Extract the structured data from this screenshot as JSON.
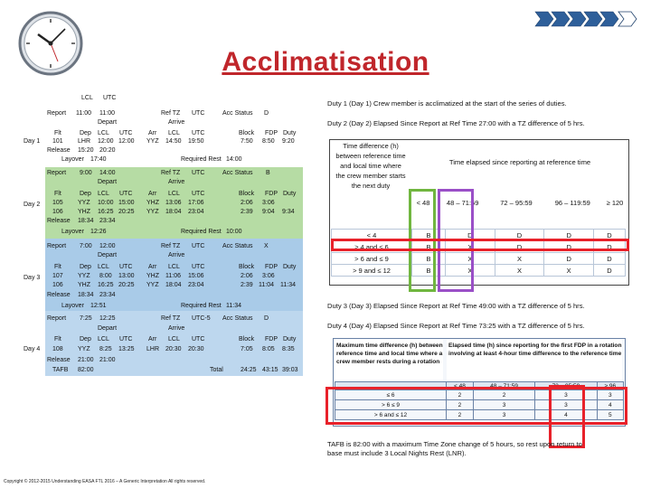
{
  "title": "Acclimatisation",
  "schedule": {
    "header_local": "LCL",
    "header_utc": "UTC",
    "report_label": "Report",
    "depart_label": "Depart",
    "arrive_label": "Arrive",
    "flt_label": "Flt",
    "dep_label": "Dep",
    "lcl_label": "LCL",
    "utc_label": "UTC",
    "arr_label": "Arr",
    "block_label": "Block",
    "fdp_label": "FDP",
    "duty_label": "Duty",
    "release_label": "Release",
    "layover_label": "Layover",
    "required_rest_label": "Required Rest",
    "ref_tz_label": "Ref TZ",
    "acc_status_label": "Acc Status",
    "day1": {
      "label": "Day 1",
      "report_lcl": "11:00",
      "report_utc": "11:00",
      "ref_tz": "UTC",
      "acc_status": "D",
      "flt": "101",
      "dep": "LHR",
      "dep_lcl": "12:00",
      "dep_utc": "12:00",
      "arr": "YYZ",
      "arr_lcl": "14:50",
      "arr_utc": "19:50",
      "block": "7:50",
      "fdp": "8:50",
      "duty": "9:20",
      "release_lcl": "15:20",
      "release_utc": "20:20",
      "layover": "17:40",
      "required_rest": "14:00"
    },
    "day2": {
      "label": "Day 2",
      "report_lcl": "9:00",
      "report_utc": "14:00",
      "ref_tz": "UTC",
      "acc_status": "B",
      "flt1": "105",
      "dep1": "YYZ",
      "dep1_lcl": "10:00",
      "dep1_utc": "15:00",
      "arr1": "YHZ",
      "arr1_lcl": "13:06",
      "arr1_utc": "17:06",
      "block1": "2:06",
      "fdp1": "3:06",
      "flt2": "106",
      "dep2": "YHZ",
      "dep2_lcl": "16:25",
      "dep2_utc": "20:25",
      "arr2": "YYZ",
      "arr2_lcl": "18:04",
      "arr2_utc": "23:04",
      "block2": "2:39",
      "fdp2": "9:04",
      "duty": "9:34",
      "release_lcl": "18:34",
      "release_utc": "23:34",
      "layover": "12:26",
      "required_rest": "10:00"
    },
    "day3": {
      "label": "Day 3",
      "report_lcl": "7:00",
      "report_utc": "12:00",
      "ref_tz": "UTC",
      "acc_status": "X",
      "flt1": "107",
      "dep1": "YYZ",
      "dep1_lcl": "8:00",
      "dep1_utc": "13:00",
      "arr1": "YHZ",
      "arr1_lcl": "11:06",
      "arr1_utc": "15:06",
      "block1": "2:06",
      "fdp1": "3:06",
      "flt2": "106",
      "dep2": "YHZ",
      "dep2_lcl": "16:25",
      "dep2_utc": "20:25",
      "arr2": "YYZ",
      "arr2_lcl": "18:04",
      "arr2_utc": "23:04",
      "block2": "2:39",
      "fdp2": "11:04",
      "duty": "11:34",
      "release_lcl": "18:34",
      "release_utc": "23:34",
      "layover": "12:51",
      "required_rest": "11:34"
    },
    "day4": {
      "label": "Day 4",
      "report_lcl": "7:25",
      "report_utc": "12:25",
      "ref_tz": "UTC-5",
      "acc_status": "D",
      "flt": "108",
      "dep": "YYZ",
      "dep_lcl": "8:25",
      "dep_utc": "13:25",
      "arr": "LHR",
      "arr_lcl": "20:30",
      "arr_utc": "20:30",
      "block": "7:05",
      "fdp": "8:05",
      "duty": "8:35",
      "release_lcl": "21:00",
      "release_utc": "21:00"
    },
    "tafb_label": "TAFB",
    "tafb": "82:00",
    "total_label": "Total",
    "total_block": "24:25",
    "total_fdp": "43:15",
    "total_duty": "39:03"
  },
  "notes": {
    "duty1": "Duty 1 (Day 1) Crew member is acclimatized at the start of the series of duties.",
    "duty2": "Duty 2 (Day 2) Elapsed Since Report at Ref Time 27:00 with a TZ difference of 5 hrs.",
    "duty3": "Duty 3 (Day 3) Elapsed Since Report at Ref Time 49:00 with a TZ difference of 5 hrs.",
    "duty4": "Duty 4 (Day 4) Elapsed Since Report at Ref Time 73:25 with a TZ difference of 5 hrs.",
    "tafb": "TAFB is 82:00 with a maximum Time Zone change of 5 hours, so rest upon return to base must include 3 Local Nights Rest (LNR)."
  },
  "acc_table": {
    "corner": "Time difference (h) between reference time and local time where the crew member starts the next duty",
    "header_span": "Time elapsed since reporting at reference time",
    "cols": [
      "< 48",
      "48 – 71:59",
      "72 – 95:59",
      "96 – 119:59",
      "≥ 120"
    ],
    "rows": [
      {
        "label": "< 4",
        "cells": [
          "B",
          "D",
          "D",
          "D",
          "D"
        ]
      },
      {
        "label": "≥ 4 and ≤ 6",
        "cells": [
          "B",
          "X",
          "D",
          "D",
          "D"
        ]
      },
      {
        "label": "> 6 and ≤ 9",
        "cells": [
          "B",
          "X",
          "X",
          "D",
          "D"
        ]
      },
      {
        "label": "> 9 and ≤ 12",
        "cells": [
          "B",
          "X",
          "X",
          "X",
          "D"
        ]
      }
    ]
  },
  "lnr_table": {
    "corner": "Maximum time difference (h) between reference time and local time where a crew member rests during a rotation",
    "header": "Elapsed time (h) since reporting for the first FDP in a rotation involving at least 4-hour time difference to the reference time",
    "cols": [
      "< 48",
      "48 – 71:59",
      "72 – 95:59",
      "≥ 96"
    ],
    "rows": [
      {
        "label": "≤ 6",
        "cells": [
          "2",
          "2",
          "3",
          "3"
        ]
      },
      {
        "label": "> 6 ≤ 9",
        "cells": [
          "2",
          "3",
          "3",
          "4"
        ]
      },
      {
        "label": "> 6 and ≤ 12",
        "cells": [
          "2",
          "3",
          "4",
          "5"
        ]
      }
    ]
  },
  "footer": "Copyright © 2012-2015 Understanding EASA FTL 2016 – A Generic Interpretation All rights reserved.",
  "colors": {
    "title": "#c0262b",
    "day1": "#ffffff",
    "day2": "#b6dca4",
    "day3": "#a9cbe8",
    "day4": "#bdd7ee",
    "highlight": "#e8212a",
    "green": "#70b63f",
    "purple": "#9a4fc7"
  }
}
